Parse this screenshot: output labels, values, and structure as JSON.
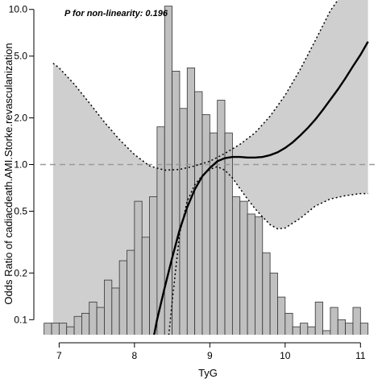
{
  "chart_data": {
    "type": "line",
    "annotation": "P for non-linearity: 0.196",
    "xlabel": "TyG",
    "ylabel": "Odds Ratio of cadiacdeath.AMI.Storke.revasculanization",
    "y_scale": "log",
    "xlim": [
      6.75,
      11.2
    ],
    "ylim": [
      0.08,
      11.5
    ],
    "x_ticks": [
      7,
      8,
      9,
      10,
      11
    ],
    "x_tick_labels": [
      "7",
      "8",
      "9",
      "10",
      "11"
    ],
    "y_ticks": [
      0.1,
      0.2,
      0.5,
      1.0,
      2.0,
      5.0,
      10.0
    ],
    "y_tick_labels": [
      "0.1",
      "0.2",
      "0.5",
      "1.0",
      "2.0",
      "5.0",
      "10.0"
    ],
    "reference_line": 1.0,
    "colors": {
      "histogram_fill": "#c0c0c0",
      "histogram_edge": "#333333",
      "ci_band": "#cfcfcf",
      "line": "#000000",
      "reference": "#999999"
    },
    "histogram": {
      "bin_width": 0.1,
      "bin_centers": [
        6.85,
        6.95,
        7.05,
        7.15,
        7.25,
        7.35,
        7.45,
        7.55,
        7.65,
        7.75,
        7.85,
        7.95,
        8.05,
        8.15,
        8.25,
        8.35,
        8.45,
        8.55,
        8.65,
        8.75,
        8.85,
        8.95,
        9.05,
        9.15,
        9.25,
        9.35,
        9.45,
        9.55,
        9.65,
        9.75,
        9.85,
        9.95,
        10.05,
        10.15,
        10.25,
        10.35,
        10.45,
        10.55,
        10.65,
        10.75,
        10.85,
        10.95,
        11.05
      ],
      "heights": [
        0.095,
        0.095,
        0.095,
        0.09,
        0.105,
        0.11,
        0.13,
        0.12,
        0.18,
        0.16,
        0.24,
        0.28,
        0.58,
        0.34,
        0.62,
        1.75,
        10.5,
        4.0,
        2.3,
        4.2,
        2.95,
        2.1,
        1.6,
        2.6,
        1.6,
        0.62,
        0.58,
        0.48,
        0.46,
        0.27,
        0.2,
        0.14,
        0.11,
        0.09,
        0.095,
        0.09,
        0.13,
        0.085,
        0.12,
        0.1,
        0.095,
        0.12,
        0.095
      ]
    },
    "series": [
      {
        "role": "estimate",
        "x": [
          8.25,
          8.3,
          8.4,
          8.5,
          8.6,
          8.7,
          8.8,
          8.9,
          9.0,
          9.1,
          9.2,
          9.3,
          9.4,
          9.5,
          9.6,
          9.7,
          9.8,
          9.9,
          10.0,
          10.1,
          10.2,
          10.3,
          10.4,
          10.5,
          10.6,
          10.7,
          10.8,
          10.9,
          11.0,
          11.1
        ],
        "values": [
          0.075,
          0.1,
          0.16,
          0.25,
          0.38,
          0.53,
          0.69,
          0.84,
          0.95,
          1.05,
          1.1,
          1.12,
          1.12,
          1.11,
          1.11,
          1.12,
          1.15,
          1.2,
          1.28,
          1.39,
          1.54,
          1.72,
          1.95,
          2.25,
          2.62,
          3.05,
          3.6,
          4.3,
          5.1,
          6.2
        ]
      },
      {
        "role": "ci_upper",
        "x": [
          6.92,
          7.0,
          7.2,
          7.4,
          7.6,
          7.8,
          8.0,
          8.2,
          8.4,
          8.6,
          8.8,
          9.0,
          9.2,
          9.4,
          9.6,
          9.8,
          10.0,
          10.2,
          10.4,
          10.6,
          10.8,
          11.0,
          11.1
        ],
        "values": [
          4.5,
          4.2,
          3.3,
          2.5,
          1.88,
          1.45,
          1.16,
          0.98,
          0.92,
          0.93,
          0.98,
          1.05,
          1.18,
          1.35,
          1.6,
          2.05,
          2.8,
          4.1,
          6.3,
          9.8,
          13.5,
          13.5,
          13.5
        ]
      },
      {
        "role": "ci_lower",
        "x": [
          8.45,
          8.5,
          8.6,
          8.7,
          8.8,
          8.9,
          9.0,
          9.1,
          9.2,
          9.3,
          9.4,
          9.5,
          9.6,
          9.7,
          9.8,
          9.9,
          10.0,
          10.2,
          10.4,
          10.6,
          10.8,
          11.0,
          11.1
        ],
        "values": [
          0.075,
          0.13,
          0.36,
          0.58,
          0.74,
          0.85,
          0.93,
          0.97,
          0.92,
          0.82,
          0.7,
          0.6,
          0.52,
          0.46,
          0.41,
          0.385,
          0.39,
          0.45,
          0.54,
          0.6,
          0.63,
          0.65,
          0.65
        ]
      }
    ]
  }
}
